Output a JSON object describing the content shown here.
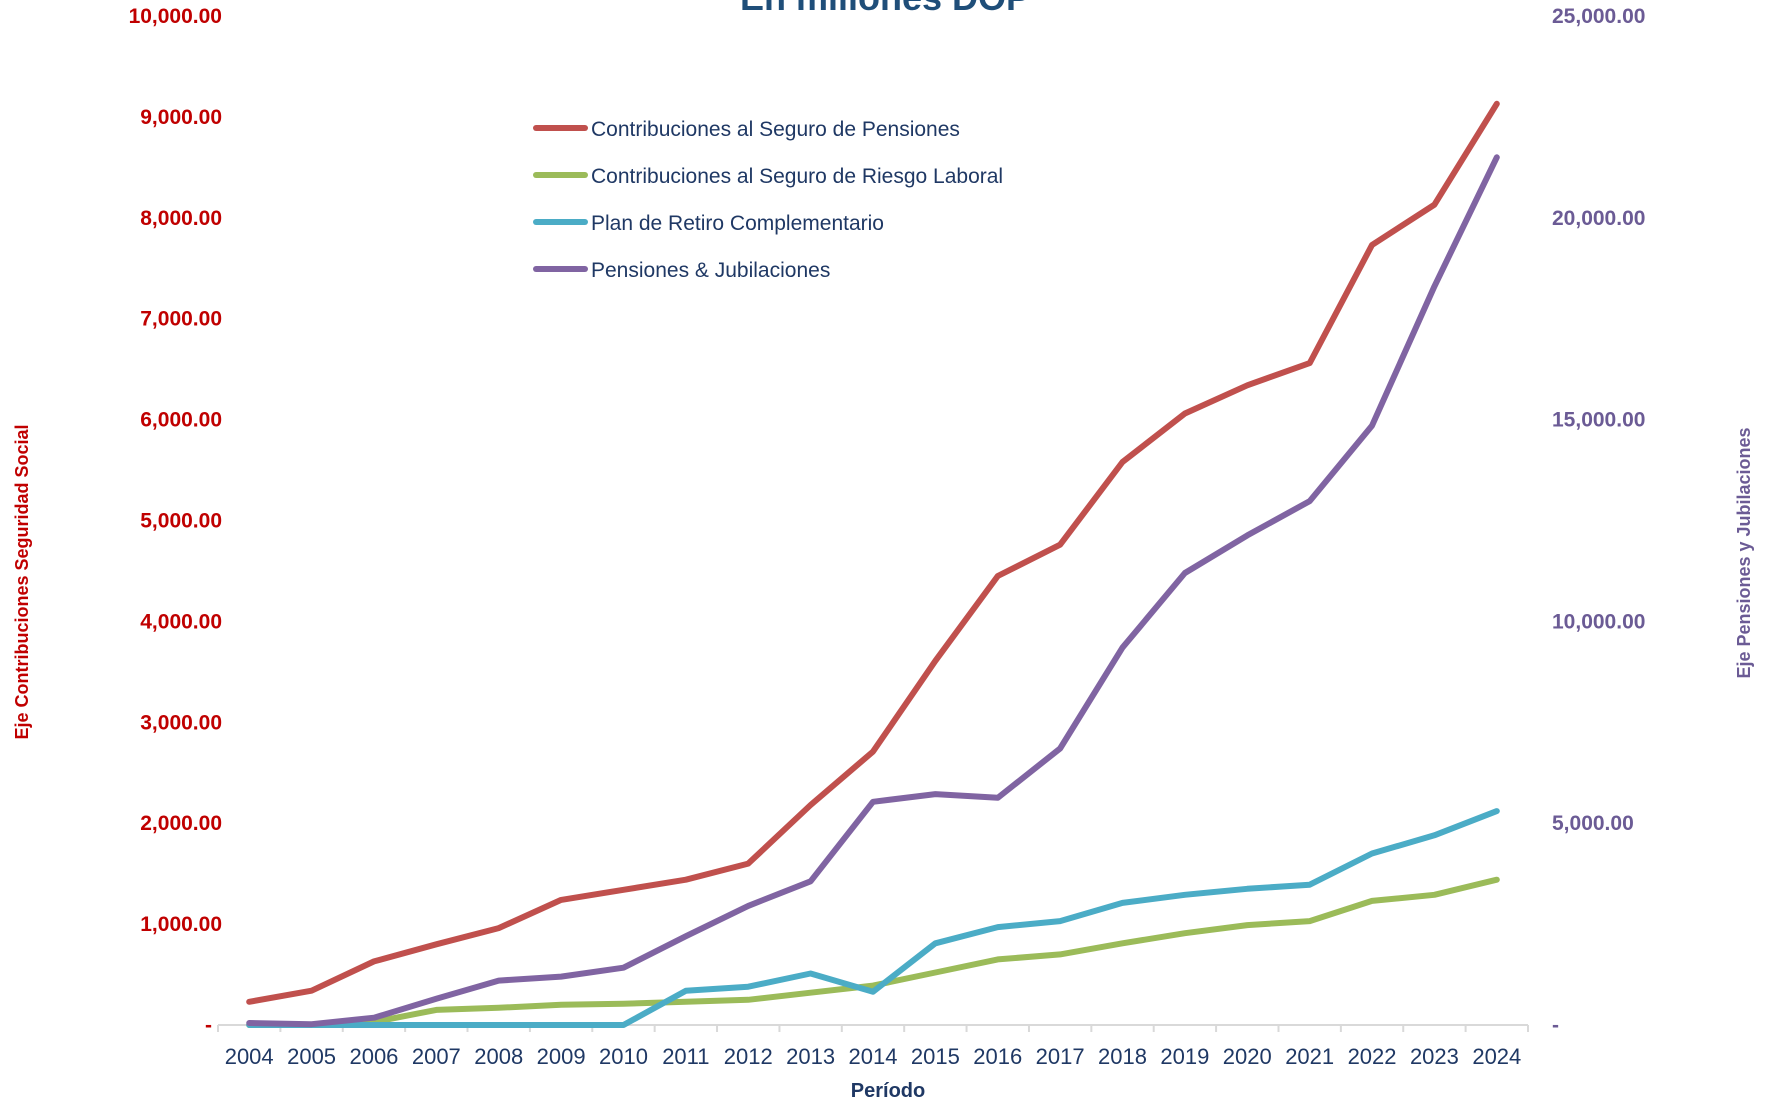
{
  "chart_data": {
    "type": "line",
    "title": "En millones DOP",
    "xlabel": "Período",
    "ylabel_left": "Eje Contribuciones Seguridad Social",
    "ylabel_right": "Eje Pensiones y Jubilaciones",
    "ylim_left": [
      0,
      10000
    ],
    "ylim_right": [
      0,
      25000
    ],
    "yticks_left": [
      "-",
      "1,000.00",
      "2,000.00",
      "3,000.00",
      "4,000.00",
      "5,000.00",
      "6,000.00",
      "7,000.00",
      "8,000.00",
      "9,000.00",
      "10,000.00"
    ],
    "yticks_right": [
      "-",
      "5,000.00",
      "10,000.00",
      "15,000.00",
      "20,000.00",
      "25,000.00"
    ],
    "categories": [
      "2004",
      "2005",
      "2006",
      "2007",
      "2008",
      "2009",
      "2010",
      "2011",
      "2012",
      "2013",
      "2014",
      "2015",
      "2016",
      "2017",
      "2018",
      "2019",
      "2020",
      "2021",
      "2022",
      "2023",
      "2024"
    ],
    "legend_position": "top-center",
    "grid": false,
    "series": [
      {
        "name": "Contribuciones al Seguro de Pensiones",
        "axis": "left",
        "color": "#c0504d",
        "values": [
          230,
          340,
          630,
          800,
          960,
          1240,
          1340,
          1440,
          1600,
          2180,
          2710,
          3610,
          4450,
          4760,
          5580,
          6060,
          6340,
          6560,
          7730,
          8130,
          9130
        ]
      },
      {
        "name": "Contribuciones al Seguro de Riesgo Laboral",
        "axis": "left",
        "color": "#9bbb59",
        "values": [
          0,
          0,
          30,
          150,
          170,
          200,
          210,
          230,
          250,
          320,
          390,
          520,
          650,
          700,
          810,
          910,
          990,
          1030,
          1230,
          1290,
          1440
        ]
      },
      {
        "name": "Plan de Retiro Complementario",
        "axis": "left",
        "color": "#4bacc6",
        "values": [
          0,
          0,
          0,
          0,
          0,
          0,
          0,
          340,
          380,
          510,
          330,
          810,
          970,
          1030,
          1210,
          1290,
          1350,
          1390,
          1700,
          1880,
          2120
        ]
      },
      {
        "name": "Pensiones & Jubilaciones",
        "axis": "right",
        "color": "#8064a2",
        "values": [
          50,
          20,
          180,
          650,
          1100,
          1200,
          1420,
          2200,
          2950,
          3560,
          5530,
          5720,
          5630,
          6850,
          9350,
          11200,
          12130,
          12980,
          14850,
          18300,
          21500
        ]
      }
    ]
  }
}
